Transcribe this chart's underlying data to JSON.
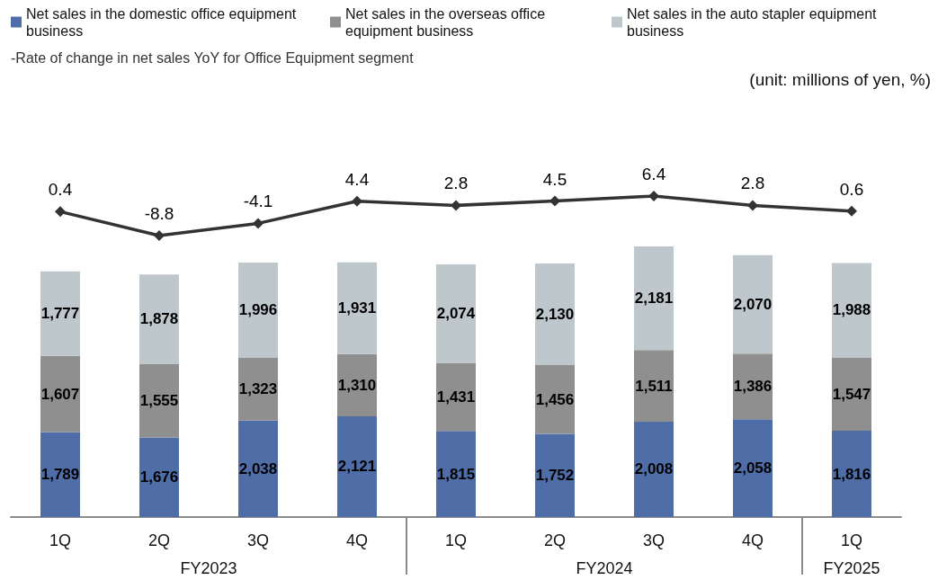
{
  "chart_data": [
    {
      "type": "line",
      "categories": [
        null,
        null,
        null,
        null,
        null,
        null,
        null,
        null,
        null
      ],
      "series": [
        {
          "name": "-Rate of change in net sales YoY for Office Equipment segment",
          "color": "#333333",
          "values": [
            0.4,
            -8.8,
            -4.1,
            4.4,
            2.8,
            4.5,
            6.4,
            2.8,
            0.6
          ],
          "value_labels": [
            "0.4",
            "-8.8",
            "-4.1",
            "4.4",
            "2.8",
            "4.5",
            "6.4",
            "2.8",
            "0.6"
          ]
        }
      ],
      "tick_labels": false,
      "legend": "top left",
      "marker": "diamond",
      "line_style": "solid",
      "annotations": [
        "(unit: millions of yen, %)"
      ]
    },
    {
      "type": "bar",
      "stacked": true,
      "categories": [
        "1Q",
        "2Q",
        "3Q",
        "4Q",
        "1Q",
        "2Q",
        "3Q",
        "4Q",
        "1Q"
      ],
      "series": [
        {
          "name": "Net sales in the domestic office equipment business",
          "color": "#4f6ea8",
          "values": [
            1789,
            1676,
            2038,
            2121,
            1815,
            1752,
            2008,
            2058,
            1816
          ],
          "value_labels": [
            "1,789",
            "1,676",
            "2,038",
            "2,121",
            "1,815",
            "1,752",
            "2,008",
            "2,058",
            "1,816"
          ]
        },
        {
          "name": "Net sales in the overseas office equipment business",
          "color": "#8f8f8f",
          "values": [
            1607,
            1555,
            1323,
            1310,
            1431,
            1456,
            1511,
            1386,
            1547
          ],
          "value_labels": [
            "1,607",
            "1,555",
            "1,323",
            "1,310",
            "1,431",
            "1,456",
            "1,511",
            "1,386",
            "1,547"
          ]
        },
        {
          "name": "Net sales in the auto stapler equipment business",
          "color": "#bec8cc",
          "values": [
            1777,
            1878,
            1996,
            1931,
            2074,
            2130,
            2181,
            2070,
            1988
          ],
          "value_labels": [
            "1,777",
            "1,878",
            "1,996",
            "1,931",
            "2,074",
            "2,130",
            "2,181",
            "2,070",
            "1,988"
          ]
        }
      ],
      "tick_labels": "x",
      "legend": "top",
      "annotations": [
        "FY2023",
        "FY2024",
        "FY2025"
      ]
    }
  ]
}
